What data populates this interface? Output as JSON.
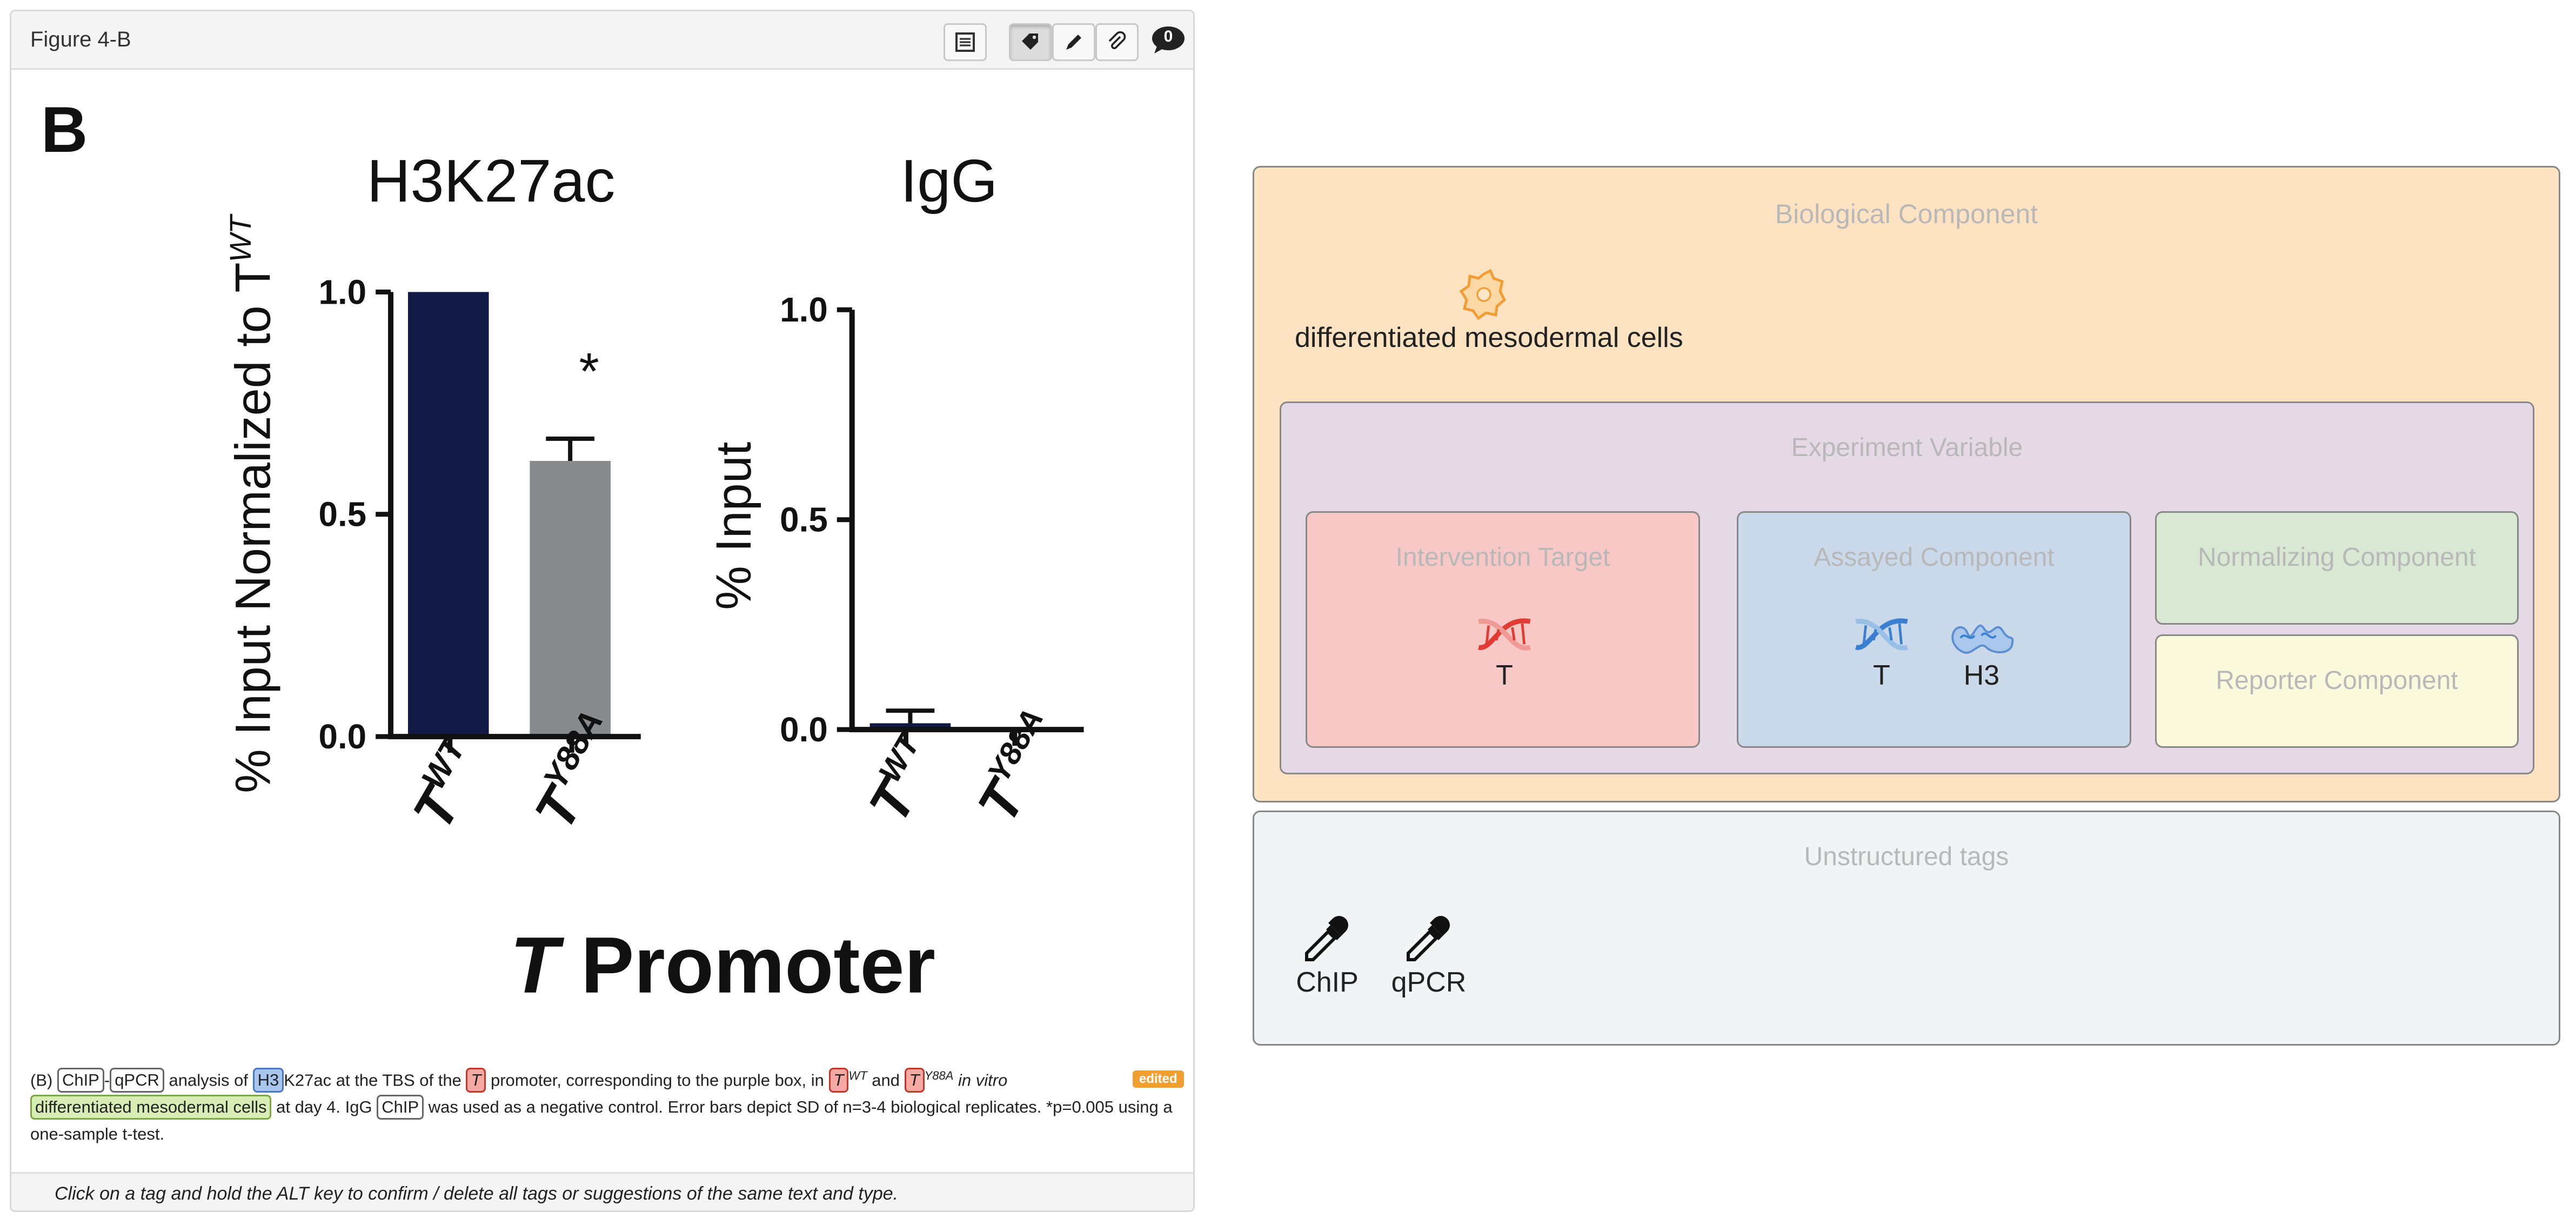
{
  "panel": {
    "title": "Figure 4-B",
    "comment_count": "0"
  },
  "figure": {
    "panel_letter": "B",
    "ylabel_left_main": "% Input Normalized to T",
    "ylabel_left_sup": "WT",
    "ylabel_right": "% Input",
    "promoter_italic": "T",
    "promoter_rest": " Promoter",
    "significance": "*",
    "charts": {
      "chart_data": [
        {
          "type": "bar",
          "title": "H3K27ac",
          "categories": [
            "T WT",
            "T Y88A"
          ],
          "values": [
            1.0,
            0.62
          ],
          "errors": [
            0,
            0.05
          ],
          "ylim": [
            0,
            1.0
          ],
          "yticks": [
            "0.0",
            "0.5",
            "1.0"
          ],
          "colors": [
            "#101a45",
            "#878b8e"
          ]
        },
        {
          "type": "bar",
          "title": "IgG",
          "categories": [
            "T WT",
            "T Y88A"
          ],
          "values": [
            0.015,
            0.003
          ],
          "errors": [
            0.03,
            0.0
          ],
          "ylim": [
            0,
            1.0
          ],
          "yticks": [
            "0.0",
            "0.5",
            "1.0"
          ],
          "colors": [
            "#101a45",
            "#878b8e"
          ]
        }
      ]
    },
    "tick_labels": {
      "base": "T",
      "wt": "WT",
      "mut": "Y88A"
    }
  },
  "caption": {
    "p1": "(B) ",
    "tag_chip": "ChIP",
    "dash": "-",
    "tag_qpcr": "qPCR",
    "p2": " analysis of ",
    "tag_h3": "H3",
    "p3": "K27ac at the TBS of the ",
    "tag_t1": "T",
    "p4": " promoter, corresponding to the purple box, in ",
    "tag_t2": "T",
    "sup_wt": "WT",
    "p5": " and ",
    "tag_t3": "T",
    "sup_mut": "Y88A",
    "p6": " in vitro ",
    "tag_cells": "differentiated mesodermal cells",
    "p7": " at day 4. IgG ",
    "tag_chip2": "ChIP",
    "p8": " was used as a negative control. Error bars depict SD of n=3-4 biological replicates. *p=0.005 using a one-sample t-test.",
    "edited": "edited"
  },
  "footer": {
    "hint": "Click on a tag and hold the ALT key to confirm / delete all tags or suggestions of the same text and type."
  },
  "tags_panel": {
    "biological": {
      "title": "Biological Component",
      "item": "differentiated mesodermal cells",
      "icon": "cell-icon"
    },
    "experiment": {
      "title": "Experiment Variable"
    },
    "intervention": {
      "title": "Intervention Target",
      "item": "T",
      "icon": "dna-icon"
    },
    "assayed": {
      "title": "Assayed Component",
      "items": [
        "T",
        "H3"
      ],
      "icons": [
        "dna-icon",
        "protein-icon"
      ]
    },
    "normalizing": {
      "title": "Normalizing Component"
    },
    "reporter": {
      "title": "Reporter Component"
    },
    "unstructured": {
      "title": "Unstructured tags",
      "items": [
        "ChIP",
        "qPCR"
      ],
      "icon": "pipette-icon"
    }
  },
  "colors": {
    "bar_wt": "#101a45",
    "bar_mut": "#878b8e",
    "biological_bg": "#fde3c2",
    "experiment_bg": "#e6d9e6",
    "intervention_bg": "#f8c8c6",
    "assayed_bg": "#c9d9ea",
    "normalizing_bg": "#d9e8d2",
    "reporter_bg": "#fbf9dc",
    "unstructured_bg": "#f2f3f5",
    "edited_badge": "#f0a030"
  }
}
